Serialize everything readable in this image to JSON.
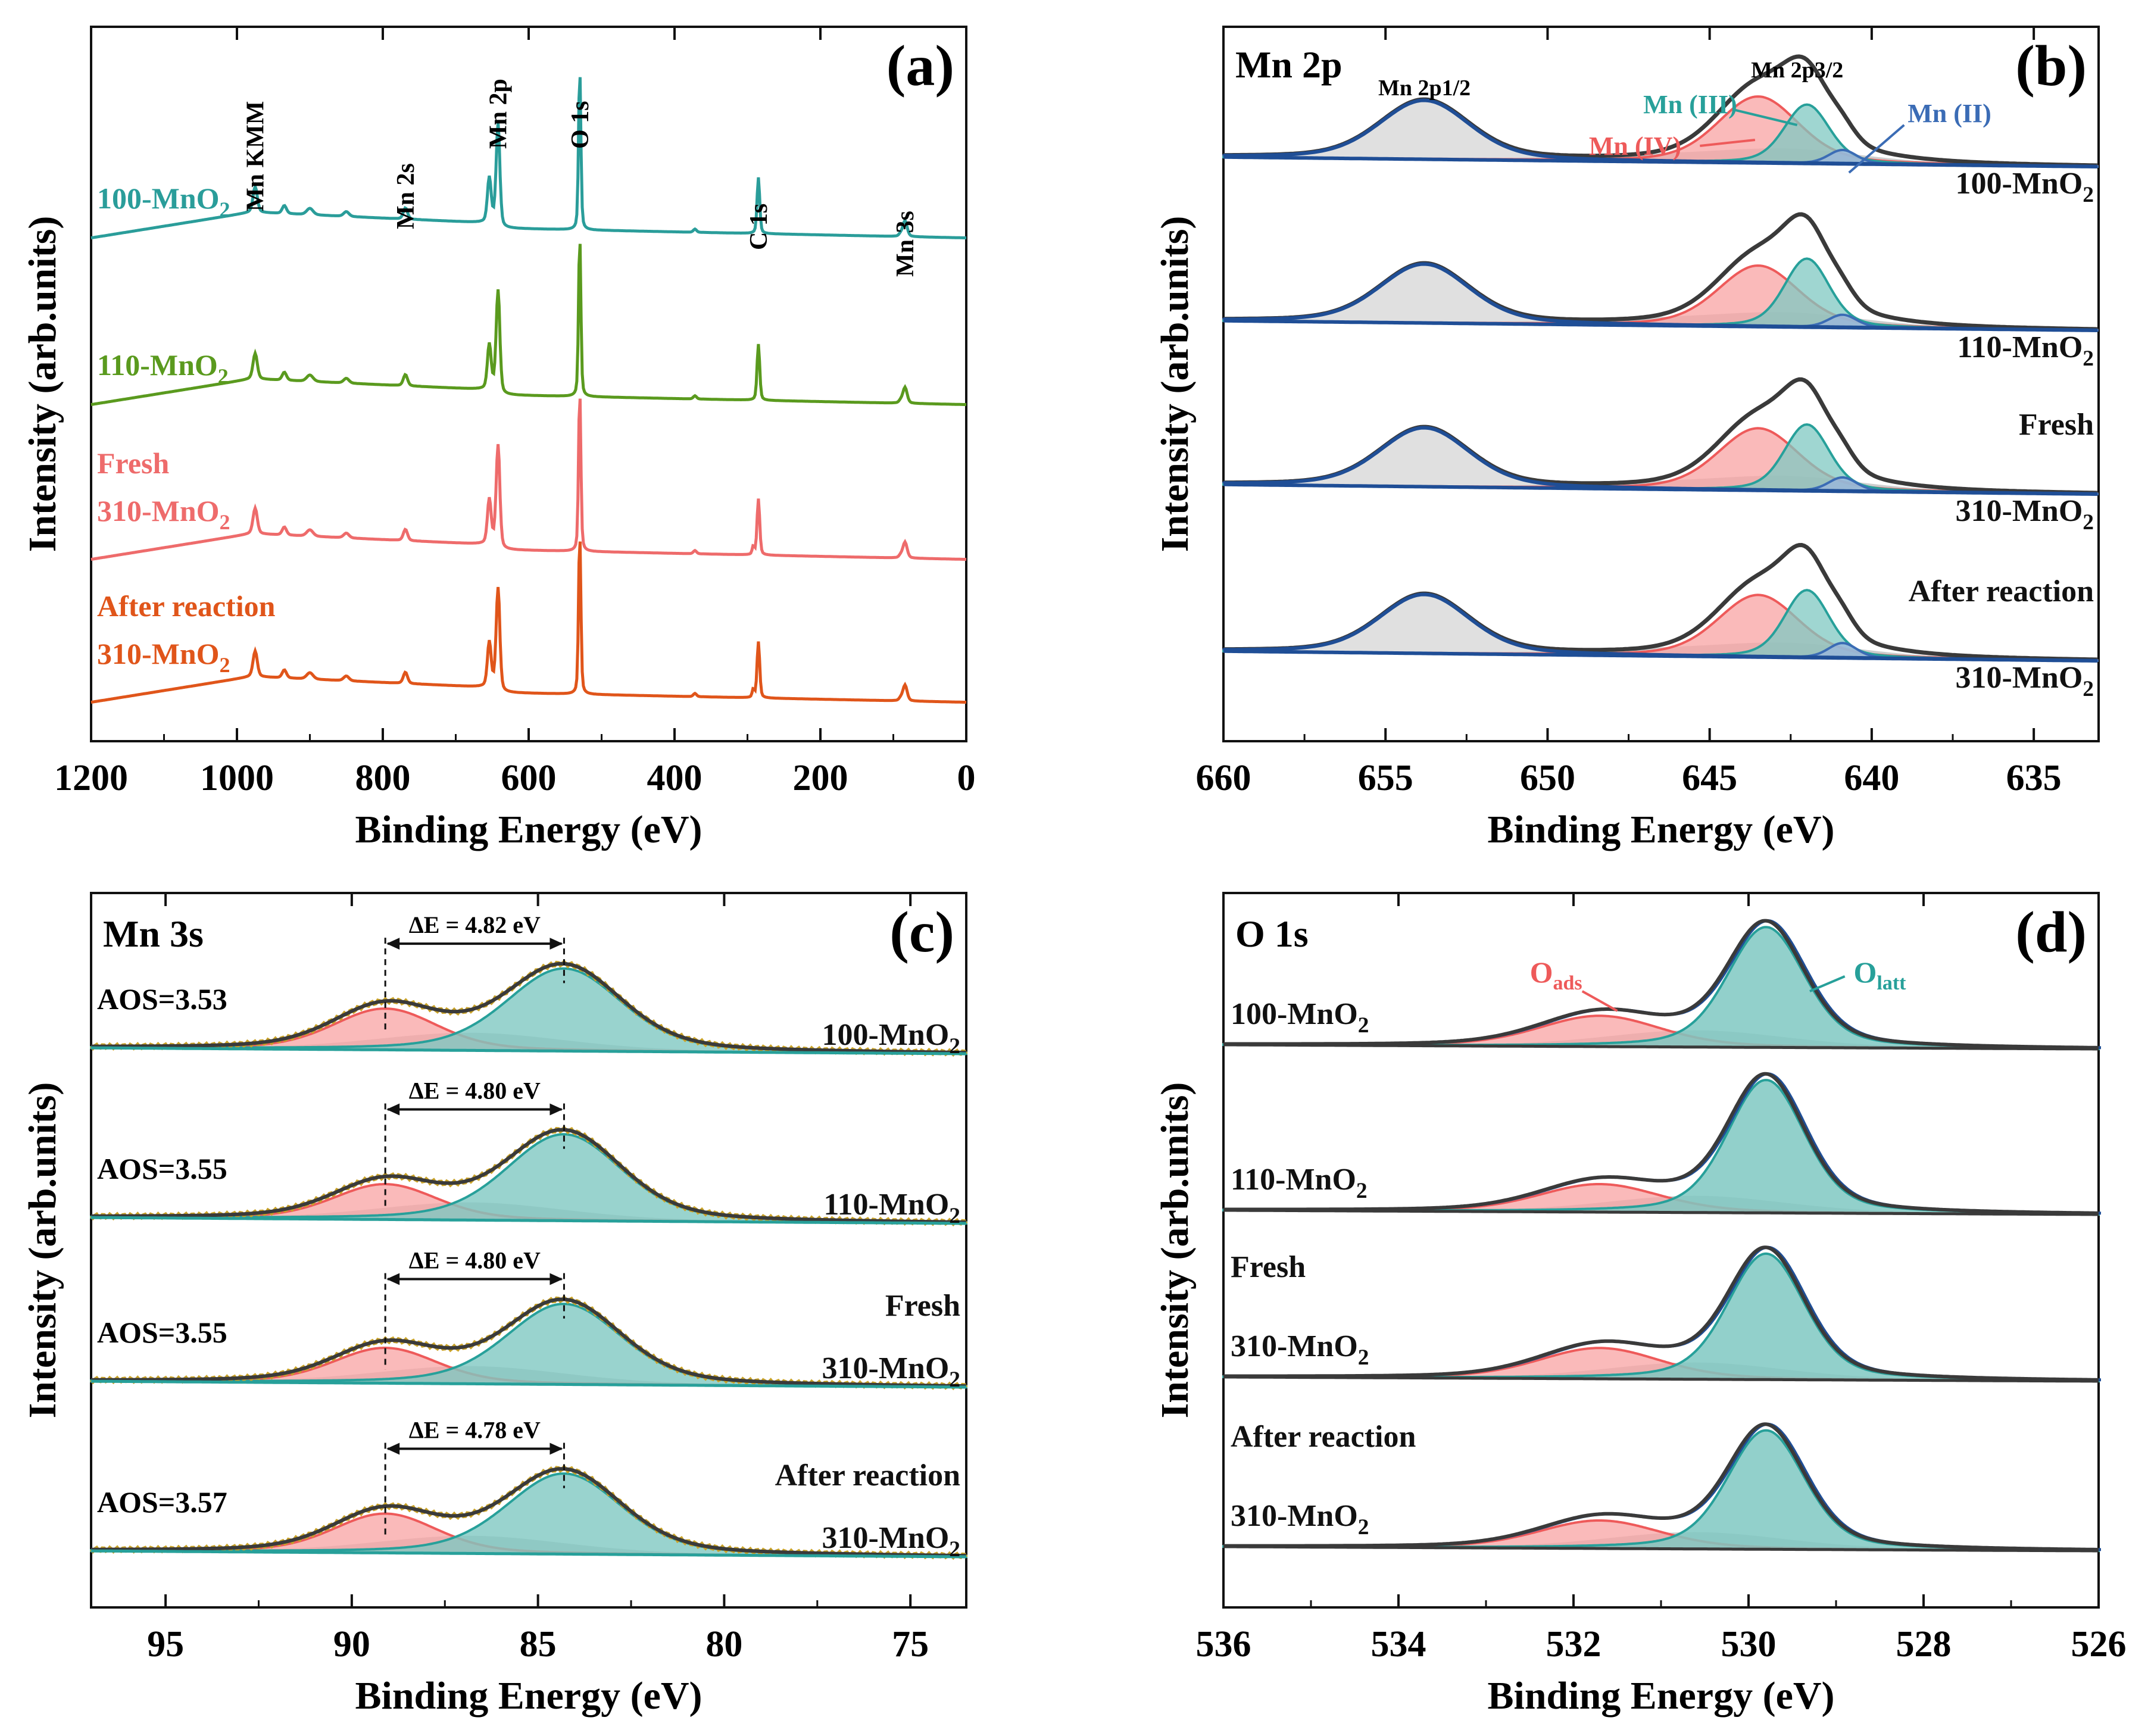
{
  "figure": {
    "colors": {
      "axis": "#111111",
      "total": "#3a3a3a",
      "envelope": "#1f4e96",
      "mn4": "#ee5a5a",
      "mn4_fill": "#f8a3a3",
      "mn3": "#27a09a",
      "mn3_fill": "#7fc8c2",
      "mn2": "#3b6cb5",
      "mn2_fill": "#9ab6de",
      "residual_fill": "#b8b8b8",
      "p1_fill": "#d6d6d6",
      "raw_points": "#c9a227",
      "s100": "#2a9d9a",
      "s110": "#5a9a1e",
      "sfresh": "#ee6b6b",
      "safter": "#e0551a"
    }
  },
  "chart_data": [
    {
      "panel_label": "(a)",
      "type": "line",
      "title": "",
      "xlabel": "Binding Energy (eV)",
      "ylabel": "Intensity (arb.units)",
      "xlim": [
        1200,
        0
      ],
      "xticks": [
        1200,
        1000,
        800,
        600,
        400,
        200,
        0
      ],
      "y_ticks_labelled": false,
      "series": [
        {
          "name": "100-MnO2",
          "label_main": "100-MnO",
          "label_sub": "2",
          "label_prefix": "",
          "color": "#2a9d9a",
          "offset": 3
        },
        {
          "name": "110-MnO2",
          "label_main": "110-MnO",
          "label_sub": "2",
          "label_prefix": "",
          "color": "#5a9a1e",
          "offset": 2
        },
        {
          "name": "Fresh 310-MnO2",
          "label_main": "310-MnO",
          "label_sub": "2",
          "label_prefix": "Fresh",
          "color": "#ee6b6b",
          "offset": 1
        },
        {
          "name": "After reaction 310-MnO2",
          "label_main": "310-MnO",
          "label_sub": "2",
          "label_prefix": "After reaction",
          "color": "#e0551a",
          "offset": 0
        }
      ],
      "peaks": [
        {
          "name": "Mn KMM",
          "x": 975,
          "height": 0.16
        },
        {
          "name": "Mn 2s",
          "x": 769,
          "height": 0.07
        },
        {
          "name": "Mn 2p",
          "x": 642,
          "height": 0.62
        },
        {
          "name": "O 1s",
          "x": 530,
          "height": 1.0
        },
        {
          "name": "C 1s",
          "x": 285,
          "height": 0.35
        },
        {
          "name": "Mn 3s",
          "x": 84,
          "height": 0.1
        }
      ],
      "peak_labels": [
        "Mn KMM",
        "Mn 2s",
        "Mn 2p",
        "O 1s",
        "C 1s",
        "Mn 3s"
      ]
    },
    {
      "panel_label": "(b)",
      "type": "area",
      "title": "Mn 2p",
      "xlabel": "Binding Energy (eV)",
      "ylabel": "Intensity (arb.units)",
      "xlim": [
        660,
        633
      ],
      "xticks": [
        660,
        655,
        650,
        645,
        640,
        635
      ],
      "y_ticks_labelled": false,
      "components": [
        {
          "name": "Mn 2p1/2",
          "center": 653.8
        },
        {
          "name": "Mn (IV)",
          "center": 643.5
        },
        {
          "name": "Mn (III)",
          "center": 642.0
        },
        {
          "name": "Mn (II)",
          "center": 640.9
        }
      ],
      "peak_labels": {
        "p12": "Mn 2p1/2",
        "p32": "Mn 2p3/2",
        "mn4": "Mn (IV)",
        "mn3": "Mn (III)",
        "mn2": "Mn (II)"
      },
      "series": [
        {
          "name": "100-MnO2",
          "label_main": "100-MnO",
          "label_sub": "2",
          "label_prefix": "",
          "ratio_mn4_mn3_mn2": [
            0.62,
            0.55,
            0.13
          ]
        },
        {
          "name": "110-MnO2",
          "label_main": "110-MnO",
          "label_sub": "2",
          "label_prefix": "",
          "ratio_mn4_mn3_mn2": [
            0.57,
            0.64,
            0.12
          ]
        },
        {
          "name": "Fresh 310-MnO2",
          "label_main": "310-MnO",
          "label_sub": "2",
          "label_prefix": "Fresh",
          "ratio_mn4_mn3_mn2": [
            0.58,
            0.62,
            0.13
          ]
        },
        {
          "name": "After reaction 310-MnO2",
          "label_main": "310-MnO",
          "label_sub": "2",
          "label_prefix": "After reaction",
          "ratio_mn4_mn3_mn2": [
            0.58,
            0.63,
            0.14
          ]
        }
      ]
    },
    {
      "panel_label": "(c)",
      "type": "area",
      "title": "Mn 3s",
      "xlabel": "Binding Energy (eV)",
      "ylabel": "Intensity (arb.units)",
      "xlim": [
        97,
        73.5
      ],
      "xticks": [
        95,
        90,
        85,
        80,
        75
      ],
      "y_ticks_labelled": false,
      "components": [
        {
          "name": "Mn 3s high",
          "center": 89.1
        },
        {
          "name": "Mn 3s main",
          "center": 84.3
        }
      ],
      "series": [
        {
          "name": "100-MnO2",
          "label_main": "100-MnO",
          "label_sub": "2",
          "label_prefix": "",
          "delta_e": "ΔE = 4.82 eV",
          "aos": "AOS=3.53",
          "ratio": [
            0.42,
            0.84
          ]
        },
        {
          "name": "110-MnO2",
          "label_main": "110-MnO",
          "label_sub": "2",
          "label_prefix": "",
          "delta_e": "ΔE = 4.80 eV",
          "aos": "AOS=3.55",
          "ratio": [
            0.36,
            0.88
          ]
        },
        {
          "name": "Fresh 310-MnO2",
          "label_main": "310-MnO",
          "label_sub": "2",
          "label_prefix": "Fresh",
          "delta_e": "ΔE = 4.80 eV",
          "aos": "AOS=3.55",
          "ratio": [
            0.36,
            0.82
          ]
        },
        {
          "name": "After reaction 310-MnO2",
          "label_main": "310-MnO",
          "label_sub": "2",
          "label_prefix": "After reaction",
          "delta_e": "ΔE = 4.78 eV",
          "aos": "AOS=3.57",
          "ratio": [
            0.4,
            0.82
          ]
        }
      ]
    },
    {
      "panel_label": "(d)",
      "type": "area",
      "title": "O 1s",
      "xlabel": "Binding Energy (eV)",
      "ylabel": "Intensity (arb.units)",
      "xlim": [
        536,
        526
      ],
      "xticks": [
        536,
        534,
        532,
        530,
        528,
        526
      ],
      "y_ticks_labelled": false,
      "components": [
        {
          "name": "O_ads",
          "center": 531.7
        },
        {
          "name": "O_latt",
          "center": 529.8
        }
      ],
      "peak_labels": {
        "ads_main": "O",
        "ads_sub": "ads",
        "latt_main": "O",
        "latt_sub": "latt"
      },
      "series": [
        {
          "name": "100-MnO2",
          "label_main": "100-MnO",
          "label_sub": "2",
          "label_prefix": "",
          "ratio_ads_latt": [
            0.22,
            0.86
          ]
        },
        {
          "name": "110-MnO2",
          "label_main": "110-MnO",
          "label_sub": "2",
          "label_prefix": "",
          "ratio_ads_latt": [
            0.2,
            0.95
          ]
        },
        {
          "name": "Fresh 310-MnO2",
          "label_main": "310-MnO",
          "label_sub": "2",
          "label_prefix": "Fresh",
          "ratio_ads_latt": [
            0.22,
            0.9
          ]
        },
        {
          "name": "After reaction 310-MnO2",
          "label_main": "310-MnO",
          "label_sub": "2",
          "label_prefix": "After reaction",
          "ratio_ads_latt": [
            0.2,
            0.85
          ]
        }
      ]
    }
  ]
}
